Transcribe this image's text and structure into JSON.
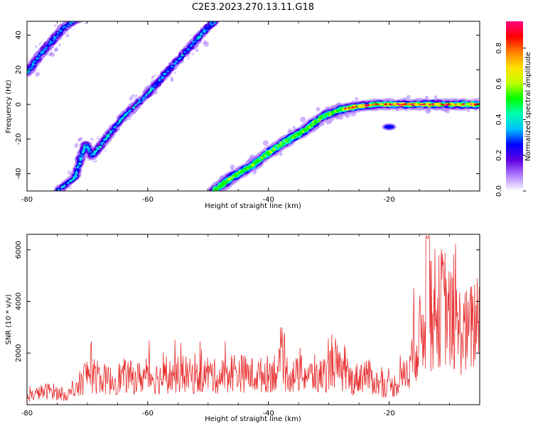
{
  "title": "C2E3.2023.270.13.11.G18",
  "chart_data": [
    {
      "type": "heatmap",
      "xlabel": "Height of straight line (km)",
      "ylabel": "Frequency (Hz)",
      "xlim": [
        -80,
        -5
      ],
      "ylim": [
        -50,
        48
      ],
      "xticks": [
        -80,
        -60,
        -40,
        -20
      ],
      "yticks": [
        -40,
        -20,
        0,
        20,
        40
      ],
      "colorbar": {
        "label": "Normalized spectral amplitude",
        "range": [
          0,
          0.95
        ],
        "ticks": [
          0.0,
          0.2,
          0.4,
          0.6,
          0.8
        ],
        "colors": [
          "#ffffff",
          "#b080ff",
          "#6000e0",
          "#0000ff",
          "#00c0ff",
          "#00ffb0",
          "#00ff00",
          "#c0ff00",
          "#ffe000",
          "#ff8000",
          "#ff0000",
          "#ff0080"
        ]
      },
      "series": [
        {
          "x": [
            -80,
            -78,
            -76,
            -74,
            -72,
            -71
          ],
          "y": [
            18,
            28,
            36,
            44,
            49,
            50
          ],
          "peak": 0.35
        },
        {
          "x": [
            -75,
            -72,
            -71,
            -70.2,
            -69.2,
            -67,
            -64,
            -60,
            -57,
            -53,
            -51,
            -49
          ],
          "y": [
            -50,
            -42,
            -30,
            -23,
            -30,
            -20,
            -7,
            6,
            18,
            33,
            41,
            48
          ],
          "peak": 0.4
        },
        {
          "x": [
            -49,
            -46,
            -43,
            -40,
            -37,
            -34,
            -31,
            -28,
            -25,
            -22,
            -18,
            -14,
            -10,
            -5
          ],
          "y": [
            -50,
            -42,
            -36,
            -28,
            -21,
            -15,
            -7,
            -3,
            -1,
            0,
            0,
            0,
            0,
            0
          ],
          "peak": 0.95
        }
      ],
      "blobs": [
        {
          "x": -20,
          "y": -13,
          "value": 0.3
        }
      ]
    },
    {
      "type": "line",
      "xlabel": "Height of straight line (km)",
      "ylabel": "SNR (10 * v/v)",
      "xlim": [
        -80,
        -5
      ],
      "ylim": [
        0,
        6600
      ],
      "xticks": [
        -80,
        -60,
        -40,
        -20
      ],
      "yticks": [
        2000,
        4000,
        6000
      ],
      "color": "#e83030",
      "x": [
        -80,
        -78,
        -76,
        -74,
        -72,
        -71,
        -70,
        -68,
        -66,
        -64,
        -62,
        -60,
        -58,
        -56,
        -54,
        -52,
        -50,
        -48,
        -46,
        -44,
        -42,
        -40,
        -38,
        -36,
        -34,
        -32,
        -30,
        -29,
        -28,
        -26,
        -24,
        -22,
        -20,
        -18,
        -17,
        -16,
        -15,
        -14,
        -13.5,
        -13,
        -12,
        -11,
        -10,
        -9,
        -8,
        -7,
        -6,
        -5
      ],
      "y": [
        300,
        500,
        600,
        400,
        500,
        1000,
        1300,
        1100,
        1000,
        1200,
        1100,
        1200,
        1100,
        1200,
        1300,
        1100,
        1300,
        1100,
        1400,
        1300,
        1200,
        1300,
        1500,
        1200,
        1300,
        1100,
        1400,
        1800,
        1300,
        1000,
        1300,
        900,
        700,
        1000,
        1500,
        2100,
        2800,
        3400,
        5200,
        3000,
        3800,
        4300,
        3600,
        3200,
        3100,
        3000,
        3300,
        4000
      ]
    }
  ]
}
